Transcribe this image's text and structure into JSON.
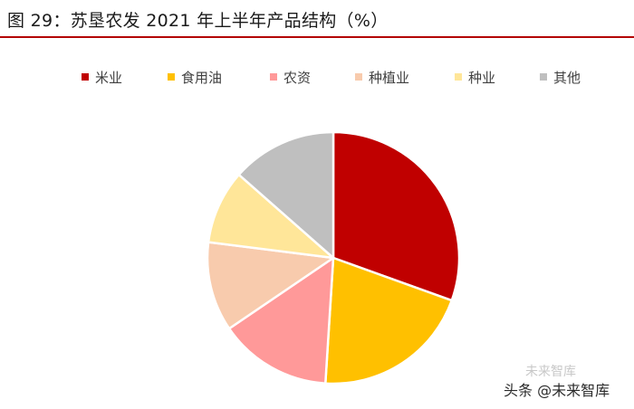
{
  "figure": {
    "title": "图 29：苏垦农发 2021 年上半年产品结构（%）"
  },
  "chart_data": {
    "type": "pie",
    "title": "图 29：苏垦农发 2021 年上半年产品结构（%）",
    "categories": [
      "米业",
      "食用油",
      "农资",
      "种植业",
      "种业",
      "其他"
    ],
    "values": [
      30.5,
      20.5,
      14.5,
      11.5,
      9.5,
      13.5
    ],
    "colors": [
      "#c00000",
      "#ffc000",
      "#ff9999",
      "#f8cbad",
      "#ffe699",
      "#bfbfbf"
    ],
    "legend_position": "top",
    "start_angle_deg": 0,
    "direction": "clockwise"
  },
  "watermark": {
    "text": "头条 @未来智库",
    "faint_text": "未来智库"
  }
}
